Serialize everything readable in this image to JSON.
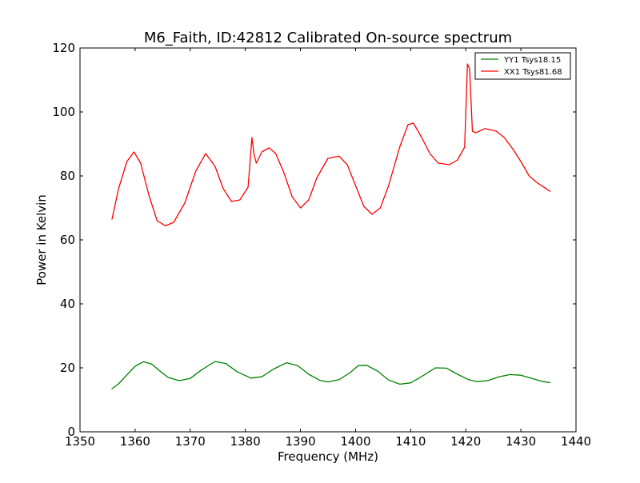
{
  "chart_data": {
    "type": "line",
    "title": "M6_Faith, ID:42812 Calibrated On-source spectrum",
    "xlabel": "Frequency (MHz)",
    "ylabel": "Power in Kelvin",
    "xlim": [
      1350,
      1440
    ],
    "ylim": [
      0,
      120
    ],
    "xticks": [
      1350,
      1360,
      1370,
      1380,
      1390,
      1400,
      1410,
      1420,
      1430,
      1440
    ],
    "yticks": [
      0,
      20,
      40,
      60,
      80,
      100,
      120
    ],
    "grid": false,
    "legend_position": "top-right",
    "series": [
      {
        "name": "YY1 Tsys18.15",
        "color": "#008000",
        "x": [
          1355.8,
          1357,
          1358.5,
          1360,
          1361.5,
          1363,
          1364.5,
          1366,
          1368,
          1370,
          1372,
          1374.5,
          1376.5,
          1378.5,
          1381,
          1383,
          1385,
          1387.5,
          1389.5,
          1391.5,
          1393.5,
          1395,
          1397,
          1399,
          1400.5,
          1402,
          1404,
          1406,
          1408,
          1410,
          1412,
          1414.5,
          1416.5,
          1418.5,
          1420.5,
          1422,
          1424,
          1425,
          1426,
          1428,
          1430,
          1432,
          1434,
          1435.3
        ],
        "values": [
          13.5,
          15,
          17.8,
          20.5,
          21.9,
          21.2,
          19,
          17,
          16,
          16.7,
          19.3,
          22,
          21.3,
          18.8,
          16.8,
          17.2,
          19.5,
          21.6,
          20.7,
          18,
          16.1,
          15.6,
          16.3,
          18.5,
          20.7,
          20.8,
          19,
          16.2,
          14.9,
          15.3,
          17.3,
          20,
          19.9,
          18,
          16.3,
          15.7,
          16,
          16.6,
          17.2,
          17.9,
          17.7,
          16.7,
          15.7,
          15.4
        ]
      },
      {
        "name": "XX1 Tsys81.68",
        "color": "#ff0000",
        "x": [
          1355.8,
          1357,
          1358.5,
          1359.8,
          1361,
          1362.5,
          1364,
          1365.5,
          1367,
          1369,
          1371,
          1372.8,
          1374.5,
          1376,
          1377.5,
          1379,
          1380.5,
          1381.2,
          1381.6,
          1382,
          1383,
          1384.3,
          1385.5,
          1387,
          1388.5,
          1390,
          1391.5,
          1393,
          1395,
          1397,
          1398.5,
          1400,
          1401.5,
          1403,
          1404.5,
          1406,
          1408,
          1409.5,
          1410.5,
          1412,
          1413.5,
          1415,
          1417,
          1418.5,
          1419.8,
          1420.3,
          1420.7,
          1421.2,
          1421.8,
          1423.5,
          1425.5,
          1427,
          1428.5,
          1430,
          1431.5,
          1433,
          1435.3
        ],
        "values": [
          66.5,
          76,
          84.5,
          87.5,
          84,
          74,
          66,
          64.4,
          65.5,
          71.5,
          81.5,
          87,
          83,
          76,
          72,
          72.5,
          76.5,
          92,
          86.5,
          84,
          87.5,
          88.8,
          87,
          81,
          73.5,
          70,
          72.5,
          79.5,
          85.5,
          86.2,
          83.5,
          77,
          70.5,
          68,
          70,
          77,
          89,
          96,
          96.5,
          92,
          87,
          84,
          83.5,
          85,
          89,
          115,
          113.5,
          94,
          93.5,
          94.8,
          94,
          92,
          88.5,
          84.5,
          80,
          77.8,
          75.2
        ]
      }
    ]
  }
}
